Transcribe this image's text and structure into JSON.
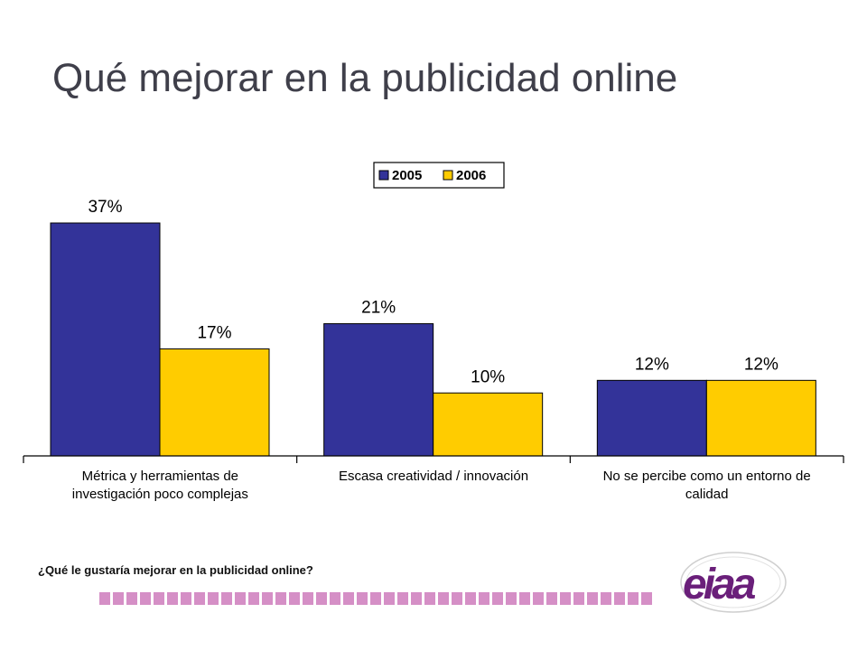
{
  "title": "Qué mejorar en la publicidad online",
  "question": "¿Qué le gustaría mejorar en la publicidad online?",
  "logo_text": "eiaa",
  "colors": {
    "series_2005": "#333399",
    "series_2006": "#ffcc00",
    "strip": "#d58fc6",
    "logo_purple": "#6a1f7a"
  },
  "chart_data": {
    "type": "bar",
    "categories": [
      [
        "Métrica y herramientas de",
        "investigación poco complejas"
      ],
      [
        "Escasa creatividad / innovación"
      ],
      [
        "No se percibe como un entorno de",
        "calidad"
      ]
    ],
    "series": [
      {
        "name": "2005",
        "values": [
          37,
          21,
          12
        ],
        "labels": [
          "37%",
          "21%",
          "12%"
        ]
      },
      {
        "name": "2006",
        "values": [
          17,
          10,
          12
        ],
        "labels": [
          "17%",
          "10%",
          "12%"
        ]
      }
    ],
    "ylim": [
      0,
      40
    ],
    "grid": false,
    "legend": "top-center"
  }
}
